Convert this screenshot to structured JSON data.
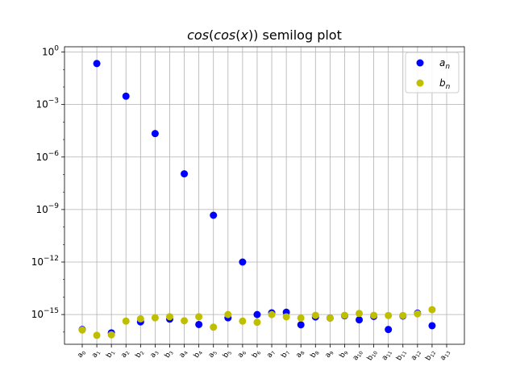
{
  "chart_data": {
    "type": "scatter",
    "title": "cos(cos(x)) semilog plot",
    "title_parts": [
      {
        "text": "cos",
        "italic": true
      },
      {
        "text": "(",
        "italic": false
      },
      {
        "text": "cos",
        "italic": true
      },
      {
        "text": "(",
        "italic": false
      },
      {
        "text": "x",
        "italic": true
      },
      {
        "text": ")) semilog plot",
        "italic": false
      }
    ],
    "xlabel": "",
    "ylabel": "",
    "yscale": "log",
    "ylim": [
      2e-17,
      2
    ],
    "grid": true,
    "legend_placement": "top-right",
    "categories": [
      "a0",
      "a1",
      "b1",
      "a2",
      "b2",
      "a3",
      "b3",
      "a4",
      "b4",
      "a5",
      "b5",
      "a6",
      "b6",
      "a7",
      "b7",
      "a8",
      "b8",
      "a9",
      "b9",
      "a10",
      "b10",
      "a11",
      "b11",
      "a12",
      "b12",
      "a13"
    ],
    "x_tick_labels": [
      {
        "base": "a",
        "sub": "0"
      },
      {
        "base": "a",
        "sub": "1"
      },
      {
        "base": "b",
        "sub": "1"
      },
      {
        "base": "a",
        "sub": "2"
      },
      {
        "base": "b",
        "sub": "2"
      },
      {
        "base": "a",
        "sub": "3"
      },
      {
        "base": "b",
        "sub": "3"
      },
      {
        "base": "a",
        "sub": "4"
      },
      {
        "base": "b",
        "sub": "4"
      },
      {
        "base": "a",
        "sub": "5"
      },
      {
        "base": "b",
        "sub": "5"
      },
      {
        "base": "a",
        "sub": "6"
      },
      {
        "base": "b",
        "sub": "6"
      },
      {
        "base": "a",
        "sub": "7"
      },
      {
        "base": "b",
        "sub": "7"
      },
      {
        "base": "a",
        "sub": "8"
      },
      {
        "base": "b",
        "sub": "8"
      },
      {
        "base": "a",
        "sub": "9"
      },
      {
        "base": "b",
        "sub": "9"
      },
      {
        "base": "a",
        "sub": "10"
      },
      {
        "base": "b",
        "sub": "10"
      },
      {
        "base": "a",
        "sub": "11"
      },
      {
        "base": "b",
        "sub": "11"
      },
      {
        "base": "a",
        "sub": "12"
      },
      {
        "base": "b",
        "sub": "12"
      },
      {
        "base": "a",
        "sub": "13"
      }
    ],
    "y_ticks": [
      {
        "value": 1,
        "exp": "0"
      },
      {
        "value": 0.001,
        "exp": "−3"
      },
      {
        "value": 1e-06,
        "exp": "−6"
      },
      {
        "value": 1e-09,
        "exp": "−9"
      },
      {
        "value": 1e-12,
        "exp": "−12"
      },
      {
        "value": 1e-15,
        "exp": "−15"
      }
    ],
    "series": [
      {
        "name": "a_n",
        "legend_base": "a",
        "legend_sub": "n",
        "color": "#0000ff",
        "points": [
          {
            "x": "a0",
            "y": 1.4e-16
          },
          {
            "x": "a1",
            "y": 0.22
          },
          {
            "x": "b1",
            "y": 9e-17
          },
          {
            "x": "a2",
            "y": 0.003
          },
          {
            "x": "b2",
            "y": 3.8e-16
          },
          {
            "x": "a3",
            "y": 2.2e-05
          },
          {
            "x": "b3",
            "y": 5.5e-16
          },
          {
            "x": "a4",
            "y": 1.1e-07
          },
          {
            "x": "b4",
            "y": 2.7e-16
          },
          {
            "x": "a5",
            "y": 4.7e-10
          },
          {
            "x": "b5",
            "y": 6.5e-16
          },
          {
            "x": "a6",
            "y": 1e-12
          },
          {
            "x": "b6",
            "y": 1e-15
          },
          {
            "x": "a7",
            "y": 1.25e-15
          },
          {
            "x": "b7",
            "y": 1.35e-15
          },
          {
            "x": "a8",
            "y": 2.6e-16
          },
          {
            "x": "b8",
            "y": 7.3e-16
          },
          {
            "x": "a9",
            "y": 6.3e-16
          },
          {
            "x": "b9",
            "y": 8.5e-16
          },
          {
            "x": "a10",
            "y": 5e-16
          },
          {
            "x": "b10",
            "y": 7.8e-16
          },
          {
            "x": "a11",
            "y": 1.4e-16
          },
          {
            "x": "b11",
            "y": 8.2e-16
          },
          {
            "x": "a12",
            "y": 1.2e-15
          },
          {
            "x": "b12",
            "y": 2.3e-16
          }
        ]
      },
      {
        "name": "b_n",
        "legend_base": "b",
        "legend_sub": "n",
        "color": "#bfbf00",
        "points": [
          {
            "x": "a0",
            "y": 1.3e-16
          },
          {
            "x": "a1",
            "y": 6.5e-17
          },
          {
            "x": "b1",
            "y": 7e-17
          },
          {
            "x": "a2",
            "y": 4.2e-16
          },
          {
            "x": "b2",
            "y": 5.7e-16
          },
          {
            "x": "a3",
            "y": 6.5e-16
          },
          {
            "x": "b3",
            "y": 7.5e-16
          },
          {
            "x": "a4",
            "y": 4.4e-16
          },
          {
            "x": "b4",
            "y": 7.5e-16
          },
          {
            "x": "a5",
            "y": 1.9e-16
          },
          {
            "x": "b5",
            "y": 1e-15
          },
          {
            "x": "a6",
            "y": 4.2e-16
          },
          {
            "x": "b6",
            "y": 3.6e-16
          },
          {
            "x": "a7",
            "y": 1e-15
          },
          {
            "x": "b7",
            "y": 7.4e-16
          },
          {
            "x": "a8",
            "y": 6.3e-16
          },
          {
            "x": "b8",
            "y": 9e-16
          },
          {
            "x": "a9",
            "y": 6.3e-16
          },
          {
            "x": "b9",
            "y": 9e-16
          },
          {
            "x": "a10",
            "y": 1.15e-15
          },
          {
            "x": "b10",
            "y": 9e-16
          },
          {
            "x": "a11",
            "y": 8.8e-16
          },
          {
            "x": "b11",
            "y": 8.8e-16
          },
          {
            "x": "a12",
            "y": 1.1e-15
          },
          {
            "x": "b12",
            "y": 1.9e-15
          }
        ]
      }
    ]
  }
}
